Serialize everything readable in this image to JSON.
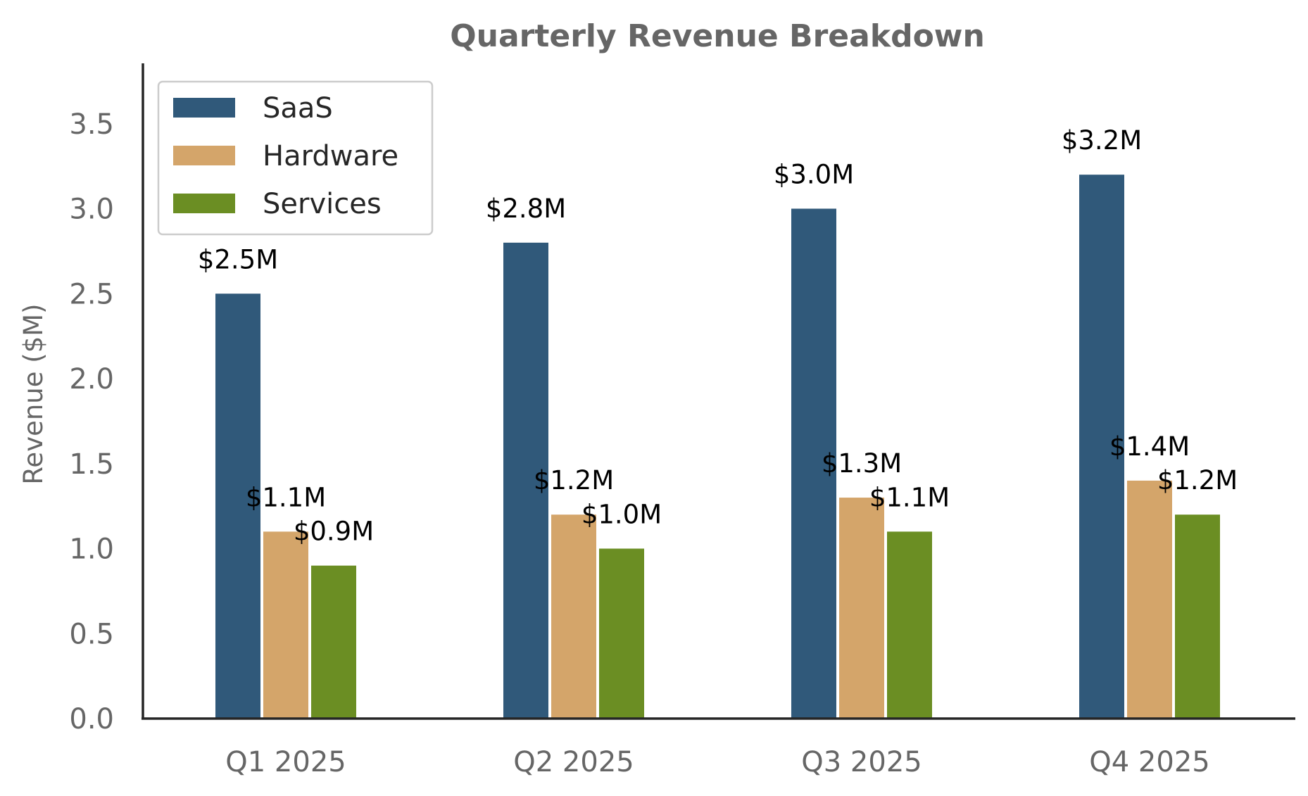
{
  "chart_data": {
    "type": "bar",
    "title": "Quarterly Revenue Breakdown",
    "xlabel": "",
    "ylabel": "Revenue ($M)",
    "categories": [
      "Q1 2025",
      "Q2 2025",
      "Q3 2025",
      "Q4 2025"
    ],
    "series": [
      {
        "name": "SaaS",
        "color": "#30597a",
        "values": [
          2.5,
          2.8,
          3.0,
          3.2
        ],
        "labels": [
          "$2.5M",
          "$2.8M",
          "$3.0M",
          "$3.2M"
        ]
      },
      {
        "name": "Hardware",
        "color": "#d4a56a",
        "values": [
          1.1,
          1.2,
          1.3,
          1.4
        ],
        "labels": [
          "$1.1M",
          "$1.2M",
          "$1.3M",
          "$1.4M"
        ]
      },
      {
        "name": "Services",
        "color": "#6b8e23",
        "values": [
          0.9,
          1.0,
          1.1,
          1.2
        ],
        "labels": [
          "$0.9M",
          "$1.0M",
          "$1.1M",
          "$1.2M"
        ]
      }
    ],
    "ylim": [
      0,
      3.84
    ],
    "yticks": [
      "0.0",
      "0.5",
      "1.0",
      "1.5",
      "2.0",
      "2.5",
      "3.0",
      "3.5"
    ],
    "legend": "top-left",
    "grid": false
  }
}
